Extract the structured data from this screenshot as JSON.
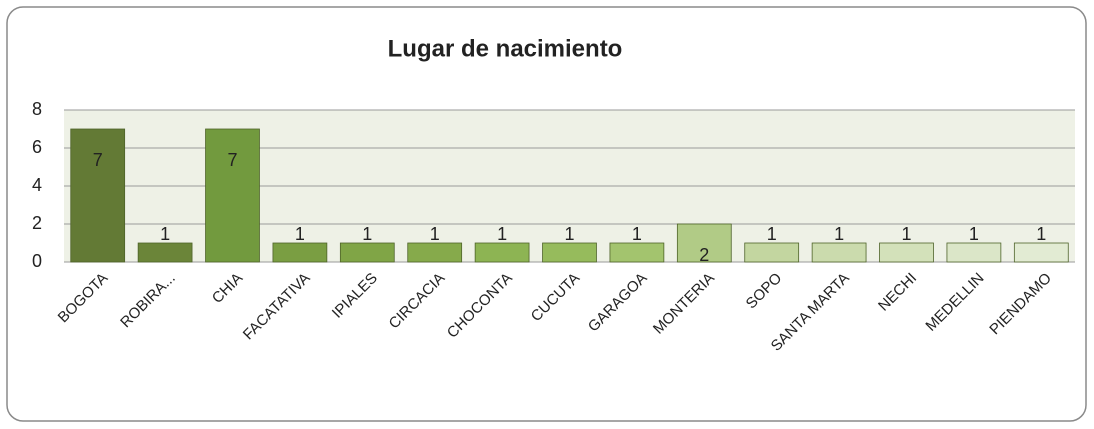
{
  "chart_data": {
    "type": "bar",
    "title": "Lugar de nacimiento",
    "categories": [
      "BOGOTA",
      "ROBIRA...",
      "CHIA",
      "FACATATIVA",
      "IPIALES",
      "CIRCACIA",
      "CHOCONTA",
      "CUCUTA",
      "GARAGOA",
      "MONTERIA",
      "SOPO",
      "SANTA MARTA",
      "NECHI",
      "MEDELLIN",
      "PIENDAMO"
    ],
    "values": [
      7,
      1,
      7,
      1,
      1,
      1,
      1,
      1,
      1,
      2,
      1,
      1,
      1,
      1,
      1
    ],
    "colors": [
      "#637a35",
      "#6b8539",
      "#729a3e",
      "#7a9e42",
      "#80a546",
      "#86aa4b",
      "#8db453",
      "#96bb5c",
      "#a3c46e",
      "#b1cb86",
      "#c3d6a0",
      "#cbdbad",
      "#d3e1ba",
      "#dbe6c8",
      "#e2ebd3"
    ],
    "ylim": [
      0,
      8
    ],
    "yticks": [
      0,
      2,
      4,
      6,
      8
    ],
    "grid": true
  }
}
